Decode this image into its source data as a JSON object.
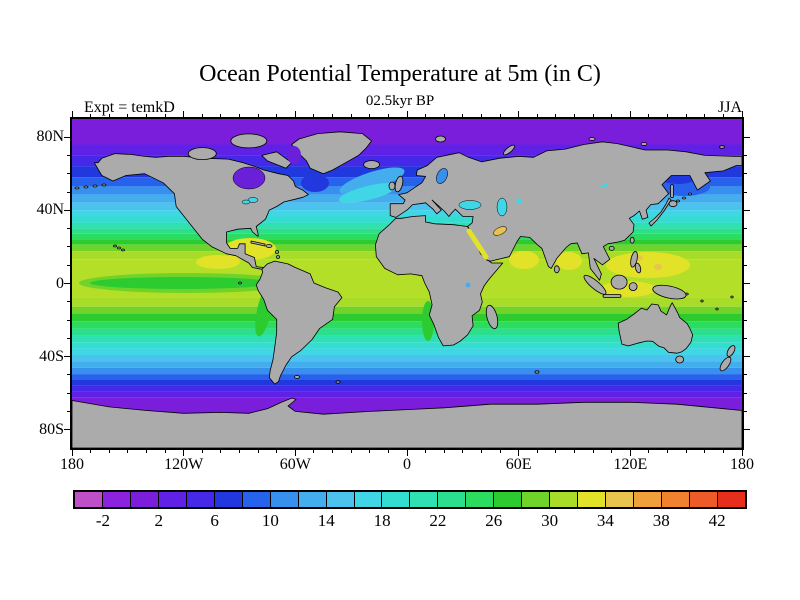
{
  "header": {
    "title": "Ocean Potential Temperature at 5m (in C)",
    "subtitle": "02.5kyr BP",
    "experiment_label": "Expt = temkD",
    "season_label": "JJA"
  },
  "map": {
    "land_color": "#ababab",
    "coastline_color": "#000000",
    "background": "#ffffff"
  },
  "axes": {
    "x": {
      "range_deg": [
        -180,
        180
      ],
      "minor_step_deg": 10,
      "major_lons": [
        -180,
        -120,
        -60,
        0,
        60,
        120,
        180
      ],
      "tick_labels": [
        "180",
        "120W",
        "60W",
        "0",
        "60E",
        "120E",
        "180"
      ]
    },
    "y": {
      "range_deg": [
        -90,
        90
      ],
      "minor_step_deg": 10,
      "major_lats": [
        80,
        40,
        0,
        -40,
        -80
      ],
      "tick_labels": [
        "80N",
        "40N",
        "0",
        "40S",
        "80S"
      ]
    }
  },
  "colorbar": {
    "min": -4,
    "max": 44,
    "step": 2,
    "tick_values": [
      -2,
      2,
      6,
      10,
      14,
      18,
      22,
      26,
      30,
      34,
      38,
      42
    ],
    "tick_labels": [
      "-2",
      "2",
      "6",
      "10",
      "14",
      "18",
      "22",
      "26",
      "30",
      "34",
      "38",
      "42"
    ],
    "colors": [
      "#be4fc8",
      "#8a22de",
      "#7a1edc",
      "#5f21e6",
      "#4629e8",
      "#2038de",
      "#2762ec",
      "#378fee",
      "#44adee",
      "#4cc3ee",
      "#41d6e6",
      "#33ddd0",
      "#2ee0b2",
      "#2bdf8e",
      "#2bdc5f",
      "#2ccb2f",
      "#6fd32a",
      "#a8dc28",
      "#e2e228",
      "#e8c44e",
      "#efa03a",
      "#f0812f",
      "#ef5b28",
      "#e52e1b"
    ]
  },
  "chart_data": {
    "type": "heatmap",
    "title": "Ocean Potential Temperature at 5m (in C)",
    "subtitle": "02.5kyr BP",
    "experiment": "temkD",
    "season": "JJA",
    "variable": "ocean potential temperature",
    "depth": "5m",
    "units": "C",
    "projection": "equirectangular lat-lon",
    "x_ticks": [
      "180",
      "120W",
      "60W",
      "0",
      "60E",
      "120E",
      "180"
    ],
    "y_ticks": [
      "80N",
      "40N",
      "0",
      "40S",
      "80S"
    ],
    "contour_levels_c": [
      -4,
      -2,
      0,
      2,
      4,
      6,
      8,
      10,
      12,
      14,
      16,
      18,
      20,
      22,
      24,
      26,
      28,
      30,
      32,
      34,
      36,
      38,
      40,
      42,
      44
    ],
    "palette": [
      "#be4fc8",
      "#8a22de",
      "#7a1edc",
      "#5f21e6",
      "#4629e8",
      "#2038de",
      "#2762ec",
      "#378fee",
      "#44adee",
      "#4cc3ee",
      "#41d6e6",
      "#33ddd0",
      "#2ee0b2",
      "#2bdf8e",
      "#2bdc5f",
      "#2ccb2f",
      "#6fd32a",
      "#a8dc28",
      "#e2e228",
      "#e8c44e",
      "#efa03a",
      "#f0812f",
      "#ef5b28",
      "#e52e1b"
    ],
    "zonal_mean_profile": {
      "lat": [
        85,
        75,
        65,
        60,
        55,
        50,
        45,
        40,
        35,
        30,
        25,
        20,
        15,
        10,
        5,
        0,
        -5,
        -10,
        -15,
        -20,
        -25,
        -30,
        -35,
        -40,
        -45,
        -50,
        -55,
        -60,
        -65
      ],
      "temp_c": [
        -1,
        0,
        3,
        6,
        9,
        11,
        13,
        15,
        18,
        21,
        24,
        26,
        27,
        28,
        28,
        27,
        28,
        27,
        26,
        24,
        22,
        19,
        17,
        14,
        12,
        9,
        6,
        3,
        0
      ]
    },
    "features": [
      "Warm pool above 30C in western tropical Pacific, Bay of Bengal, Arabian Sea and Caribbean",
      "Equatorial Pacific cold tongue (about 24-26C) in central/eastern Pacific",
      "Subpolar and polar oceans near -2 to 4C (purple/violet bands)",
      "Hudson Bay and Arctic shown in violet (near-freezing)",
      "Land masked in gray with black coastlines; Antarctica gray along bottom"
    ]
  }
}
